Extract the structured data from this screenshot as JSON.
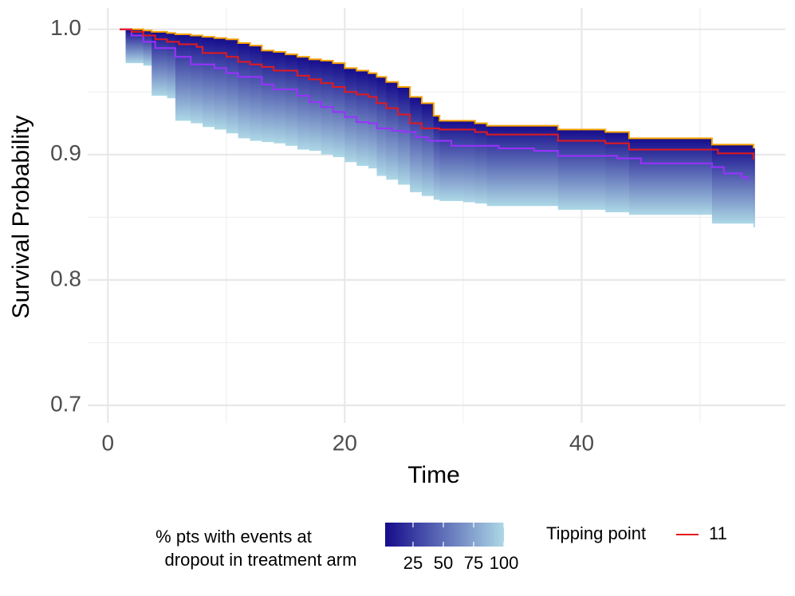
{
  "chart_data": {
    "type": "survival-band",
    "xlabel": "Time",
    "ylabel": "Survival Probability",
    "xlim": [
      -1.7,
      57.2
    ],
    "ylim": [
      0.686,
      1.017
    ],
    "xticks": [
      0,
      20,
      40
    ],
    "yticks": [
      0.7,
      0.8,
      0.9,
      {
        "value": 1.0,
        "label": "1.0"
      }
    ],
    "xminor": [
      10,
      30,
      50
    ],
    "yminor": [
      0.75,
      0.85,
      0.95
    ],
    "grid": true,
    "band": {
      "top_color": "#150b8c",
      "bottom_color": "#add8e6",
      "edge_color": "#f5a000",
      "x": [
        1,
        1.5,
        3,
        3.7,
        5,
        5.7,
        7,
        8,
        9,
        10,
        11,
        12,
        13,
        14,
        15,
        16,
        17,
        18,
        19,
        20,
        21,
        22,
        22.7,
        23.5,
        24.5,
        25.5,
        26.5,
        27.5,
        28,
        30,
        31,
        32,
        38,
        42,
        44,
        51,
        54.5
      ],
      "upper": [
        1.0,
        1.0,
        0.999,
        0.998,
        0.997,
        0.996,
        0.995,
        0.994,
        0.993,
        0.992,
        0.989,
        0.987,
        0.983,
        0.982,
        0.98,
        0.978,
        0.976,
        0.975,
        0.973,
        0.969,
        0.967,
        0.965,
        0.962,
        0.958,
        0.954,
        0.946,
        0.941,
        0.931,
        0.927,
        0.927,
        0.925,
        0.923,
        0.92,
        0.918,
        0.913,
        0.908,
        0.905
      ],
      "lower": [
        1.0,
        0.973,
        0.971,
        0.947,
        0.945,
        0.927,
        0.925,
        0.922,
        0.92,
        0.917,
        0.913,
        0.911,
        0.91,
        0.909,
        0.907,
        0.904,
        0.903,
        0.9,
        0.898,
        0.894,
        0.891,
        0.889,
        0.883,
        0.88,
        0.876,
        0.87,
        0.867,
        0.864,
        0.863,
        0.862,
        0.861,
        0.859,
        0.856,
        0.854,
        0.852,
        0.845,
        0.842
      ]
    },
    "series": [
      {
        "color": "#9b30ff",
        "x": [
          1,
          2,
          3,
          4,
          5.7,
          7,
          9,
          10,
          11,
          13,
          14,
          16,
          17,
          18,
          19,
          20,
          21,
          22,
          22.7,
          24,
          25,
          26,
          27,
          29,
          33,
          36,
          38,
          43,
          45,
          51,
          52,
          53.5,
          54
        ],
        "values": [
          1.0,
          0.995,
          0.99,
          0.985,
          0.978,
          0.972,
          0.969,
          0.965,
          0.962,
          0.956,
          0.952,
          0.947,
          0.942,
          0.938,
          0.934,
          0.93,
          0.926,
          0.925,
          0.921,
          0.919,
          0.918,
          0.914,
          0.911,
          0.907,
          0.905,
          0.903,
          0.899,
          0.897,
          0.893,
          0.89,
          0.885,
          0.882,
          0.879
        ]
      },
      {
        "name": "11",
        "color": "#e31a1c",
        "x": [
          1,
          2,
          3,
          4,
          5,
          6,
          7.5,
          8,
          10,
          11,
          12,
          13,
          14,
          16,
          17,
          18,
          19,
          20,
          21,
          22,
          22.7,
          23.5,
          24.5,
          25.5,
          26.5,
          28,
          31,
          32,
          38,
          42,
          44,
          51,
          51.5,
          54.5
        ],
        "values": [
          1.0,
          0.998,
          0.995,
          0.992,
          0.99,
          0.988,
          0.986,
          0.981,
          0.978,
          0.974,
          0.972,
          0.97,
          0.967,
          0.963,
          0.96,
          0.957,
          0.954,
          0.95,
          0.948,
          0.946,
          0.941,
          0.937,
          0.932,
          0.925,
          0.921,
          0.92,
          0.918,
          0.916,
          0.911,
          0.909,
          0.904,
          0.904,
          0.901,
          0.896
        ]
      }
    ],
    "colorbar": {
      "title_lines": [
        "% pts with events at",
        "dropout in treatment arm"
      ],
      "lim": [
        2,
        100
      ],
      "ticks": [
        25,
        50,
        75,
        100
      ]
    },
    "legend_title": "Tipping point"
  }
}
